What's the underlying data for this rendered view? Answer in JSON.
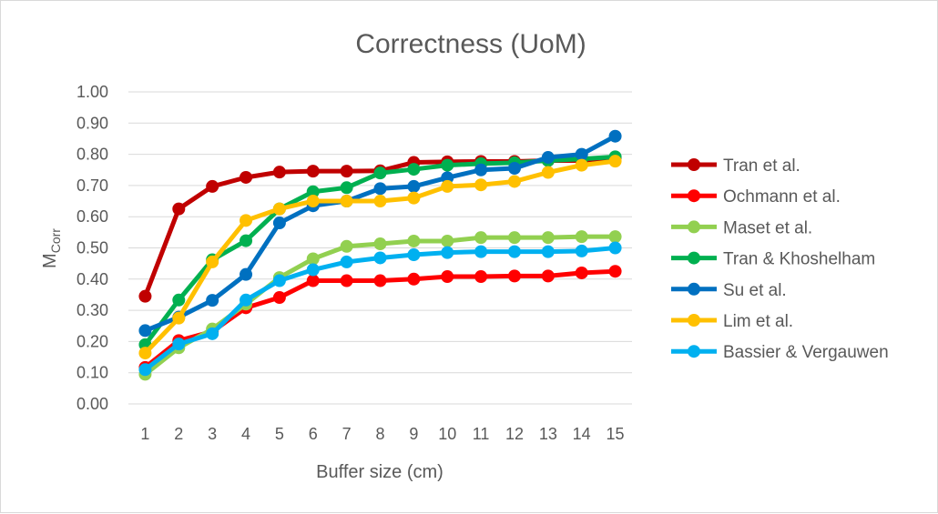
{
  "chart_data": {
    "type": "line",
    "title": "Correctness (UoM)",
    "xlabel": "Buffer size (cm)",
    "ylabel_main": "M",
    "ylabel_sub": "Corr",
    "x": [
      1,
      2,
      3,
      4,
      5,
      6,
      7,
      8,
      9,
      10,
      11,
      12,
      13,
      14,
      15
    ],
    "ylim": [
      0,
      1
    ],
    "yticks": [
      "0.00",
      "0.10",
      "0.20",
      "0.30",
      "0.40",
      "0.50",
      "0.60",
      "0.70",
      "0.80",
      "0.90",
      "1.00"
    ],
    "grid": true,
    "legend_position": "right",
    "series": [
      {
        "name": "Tran et al.",
        "color": "#c00000",
        "values": [
          0.345,
          0.625,
          0.697,
          0.726,
          0.743,
          0.746,
          0.746,
          0.747,
          0.774,
          0.776,
          0.777,
          0.777,
          0.78,
          0.78,
          0.79
        ]
      },
      {
        "name": "Ochmann et al.",
        "color": "#ff0000",
        "values": [
          0.117,
          0.203,
          0.232,
          0.308,
          0.341,
          0.395,
          0.395,
          0.395,
          0.4,
          0.408,
          0.408,
          0.41,
          0.41,
          0.42,
          0.425
        ]
      },
      {
        "name": "Maset et al.",
        "color": "#92d050",
        "values": [
          0.095,
          0.18,
          0.24,
          0.32,
          0.405,
          0.465,
          0.505,
          0.513,
          0.522,
          0.522,
          0.533,
          0.533,
          0.533,
          0.536,
          0.536
        ]
      },
      {
        "name": "Tran & Khoshelham",
        "color": "#00b050",
        "values": [
          0.19,
          0.333,
          0.462,
          0.523,
          0.625,
          0.68,
          0.693,
          0.74,
          0.752,
          0.765,
          0.77,
          0.773,
          0.78,
          0.785,
          0.792
        ]
      },
      {
        "name": "Su et al.",
        "color": "#0070c0",
        "values": [
          0.235,
          0.278,
          0.332,
          0.415,
          0.58,
          0.635,
          0.65,
          0.69,
          0.697,
          0.725,
          0.75,
          0.755,
          0.79,
          0.8,
          0.858
        ]
      },
      {
        "name": "Lim et al.",
        "color": "#ffc000",
        "values": [
          0.163,
          0.275,
          0.455,
          0.588,
          0.625,
          0.65,
          0.65,
          0.65,
          0.66,
          0.697,
          0.702,
          0.713,
          0.742,
          0.765,
          0.778
        ]
      },
      {
        "name": "Bassier & Vergauwen",
        "color": "#00b0f0",
        "values": [
          0.11,
          0.192,
          0.225,
          0.333,
          0.395,
          0.43,
          0.455,
          0.468,
          0.478,
          0.485,
          0.488,
          0.488,
          0.488,
          0.49,
          0.5
        ]
      }
    ]
  }
}
